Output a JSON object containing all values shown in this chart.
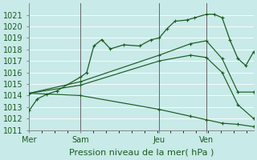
{
  "bg_color": "#c8eae8",
  "grid_color": "#b0ddd8",
  "line_color": "#1a5c20",
  "xlabel": "Pression niveau de la mer( hPa )",
  "day_labels": [
    "Mer",
    "Sam",
    "Jeu",
    "Ven"
  ],
  "day_positions": [
    0,
    65,
    165,
    225
  ],
  "xlim": [
    0,
    285
  ],
  "ylim": [
    1011,
    1022
  ],
  "ytick_min": 1011,
  "ytick_max": 1021,
  "line1_x": [
    0,
    10,
    22,
    35,
    65,
    73,
    82,
    92,
    103,
    120,
    140,
    155,
    165,
    175,
    185,
    200,
    210,
    225,
    235,
    245,
    255,
    265,
    275,
    285
  ],
  "line1_y": [
    1012.7,
    1013.7,
    1014.1,
    1014.4,
    1015.6,
    1016.0,
    1018.3,
    1018.85,
    1018.05,
    1018.4,
    1018.3,
    1018.85,
    1019.0,
    1019.8,
    1020.45,
    1020.55,
    1020.75,
    1021.05,
    1021.05,
    1020.75,
    1018.8,
    1017.2,
    1016.6,
    1017.8
  ],
  "line2_x": [
    0,
    65,
    165,
    205,
    225,
    245,
    265,
    285
  ],
  "line2_y": [
    1014.2,
    1015.2,
    1017.5,
    1018.5,
    1018.75,
    1017.2,
    1014.3,
    1014.3
  ],
  "line3_x": [
    0,
    65,
    165,
    205,
    225,
    245,
    265,
    285
  ],
  "line3_y": [
    1014.2,
    1014.9,
    1017.0,
    1017.5,
    1017.3,
    1016.0,
    1013.2,
    1012.0
  ],
  "line4_x": [
    0,
    65,
    165,
    205,
    225,
    245,
    265,
    285
  ],
  "line4_y": [
    1014.2,
    1014.0,
    1012.8,
    1012.2,
    1011.9,
    1011.6,
    1011.5,
    1011.3
  ]
}
